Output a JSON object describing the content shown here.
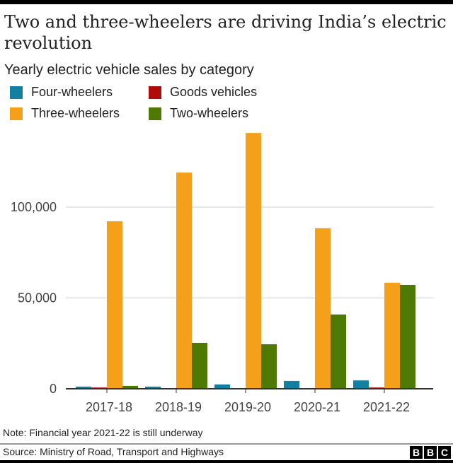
{
  "title": "Two and three-wheelers are driving India’s electric revolution",
  "subtitle": "Yearly electric vehicle sales by category",
  "note": "Note: Financial year 2021-22 is still underway",
  "source": "Source: Ministry of Road, Transport and Highways",
  "logo": "BBC",
  "chart_data": {
    "type": "bar",
    "categories": [
      "2017-18",
      "2018-19",
      "2019-20",
      "2020-21",
      "2021-22"
    ],
    "series": [
      {
        "name": "Four-wheelers",
        "color": "#1380a1",
        "values": [
          1200,
          1200,
          2400,
          4300,
          4600
        ]
      },
      {
        "name": "Goods vehicles",
        "color": "#b00b0b",
        "values": [
          700,
          300,
          0,
          0,
          700
        ]
      },
      {
        "name": "Three-wheelers",
        "color": "#f5a01a",
        "values": [
          92200,
          119000,
          140800,
          88400,
          58400
        ]
      },
      {
        "name": "Two-wheelers",
        "color": "#4e7a04",
        "values": [
          1600,
          25300,
          24500,
          40900,
          57200
        ]
      }
    ],
    "yticks": [
      0,
      50000,
      100000
    ],
    "ytick_labels": [
      "0",
      "50,000",
      "100,000"
    ],
    "ylim": [
      0,
      140000
    ],
    "grid": true,
    "legend": "top-left"
  }
}
